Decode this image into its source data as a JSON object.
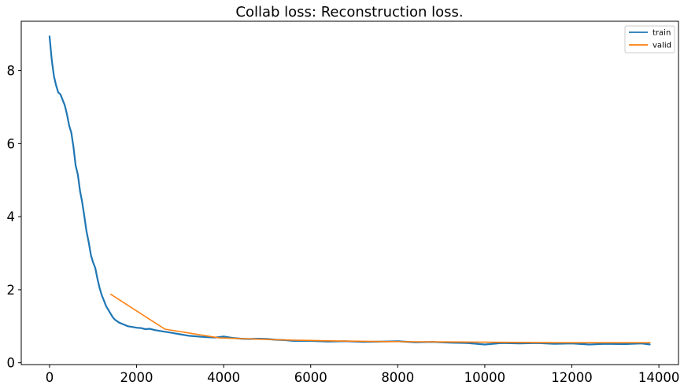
{
  "chart_data": {
    "type": "line",
    "title": "Collab loss: Reconstruction loss.",
    "xlabel": "",
    "ylabel": "",
    "xlim": [
      -650,
      14450
    ],
    "ylim": [
      -0.05,
      9.35
    ],
    "xticks": [
      0,
      2000,
      4000,
      6000,
      8000,
      10000,
      12000,
      14000
    ],
    "yticks": [
      0,
      2,
      4,
      6,
      8
    ],
    "grid": false,
    "legend_position": "top-right",
    "series": [
      {
        "name": "train",
        "color": "#1f77b4",
        "x": [
          0,
          50,
          100,
          150,
          200,
          250,
          300,
          350,
          400,
          450,
          500,
          550,
          600,
          650,
          700,
          750,
          800,
          850,
          900,
          950,
          1000,
          1050,
          1100,
          1150,
          1200,
          1250,
          1300,
          1350,
          1400,
          1450,
          1500,
          1600,
          1700,
          1800,
          1900,
          2000,
          2100,
          2200,
          2300,
          2400,
          2500,
          2600,
          2700,
          2800,
          2900,
          3000,
          3200,
          3400,
          3600,
          3800,
          4000,
          4200,
          4400,
          4600,
          4800,
          5000,
          5200,
          5400,
          5600,
          5800,
          6000,
          6400,
          6800,
          7200,
          7600,
          8000,
          8400,
          8800,
          9200,
          9600,
          10000,
          10400,
          10800,
          11200,
          11600,
          12000,
          12400,
          12800,
          13200,
          13600,
          13800
        ],
        "y": [
          8.95,
          8.3,
          7.85,
          7.6,
          7.4,
          7.35,
          7.2,
          7.05,
          6.8,
          6.5,
          6.3,
          5.9,
          5.4,
          5.15,
          4.7,
          4.4,
          4.0,
          3.6,
          3.3,
          2.95,
          2.75,
          2.6,
          2.3,
          2.05,
          1.85,
          1.7,
          1.55,
          1.45,
          1.35,
          1.25,
          1.18,
          1.1,
          1.05,
          1.0,
          0.98,
          0.96,
          0.95,
          0.92,
          0.93,
          0.9,
          0.88,
          0.86,
          0.84,
          0.82,
          0.8,
          0.78,
          0.74,
          0.72,
          0.7,
          0.69,
          0.72,
          0.68,
          0.66,
          0.65,
          0.66,
          0.65,
          0.63,
          0.62,
          0.6,
          0.6,
          0.6,
          0.58,
          0.59,
          0.57,
          0.58,
          0.59,
          0.56,
          0.57,
          0.55,
          0.54,
          0.5,
          0.54,
          0.53,
          0.54,
          0.52,
          0.53,
          0.5,
          0.52,
          0.51,
          0.53,
          0.5
        ]
      },
      {
        "name": "valid",
        "color": "#ff7f0e",
        "x": [
          1400,
          2650,
          3900,
          5200,
          6500,
          7800,
          9100,
          10400,
          11700,
          13000,
          13800
        ],
        "y": [
          1.88,
          0.92,
          0.68,
          0.63,
          0.6,
          0.58,
          0.57,
          0.56,
          0.55,
          0.55,
          0.55
        ]
      }
    ]
  }
}
